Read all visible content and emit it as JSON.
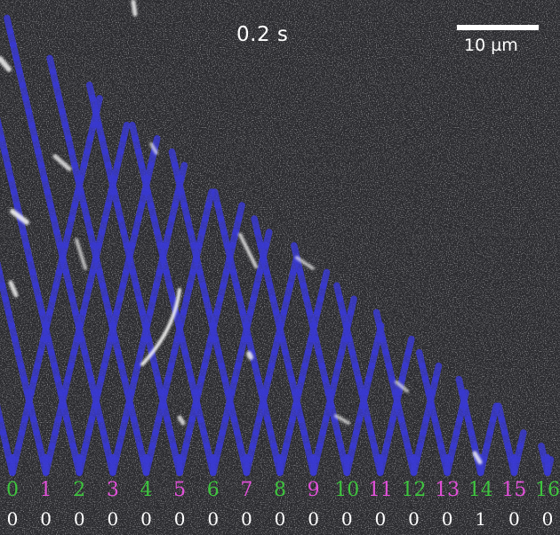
{
  "overlay": {
    "timestamp": "0.2 s",
    "scalebar_label": "10 µm"
  },
  "colors": {
    "lattice": "#3a3adc",
    "label_even": "#3ec43e",
    "label_odd": "#e050d8",
    "count": "#ffffff",
    "background": "#2b2b2f"
  },
  "lanes": [
    {
      "label": "0",
      "count": "0"
    },
    {
      "label": "1",
      "count": "0"
    },
    {
      "label": "2",
      "count": "0"
    },
    {
      "label": "3",
      "count": "0"
    },
    {
      "label": "4",
      "count": "0"
    },
    {
      "label": "5",
      "count": "0"
    },
    {
      "label": "6",
      "count": "0"
    },
    {
      "label": "7",
      "count": "0"
    },
    {
      "label": "8",
      "count": "0"
    },
    {
      "label": "9",
      "count": "0"
    },
    {
      "label": "10",
      "count": "0"
    },
    {
      "label": "11",
      "count": "0"
    },
    {
      "label": "12",
      "count": "0"
    },
    {
      "label": "13",
      "count": "0"
    },
    {
      "label": "14",
      "count": "1"
    },
    {
      "label": "15",
      "count": "0"
    },
    {
      "label": "16",
      "count": "0"
    }
  ]
}
